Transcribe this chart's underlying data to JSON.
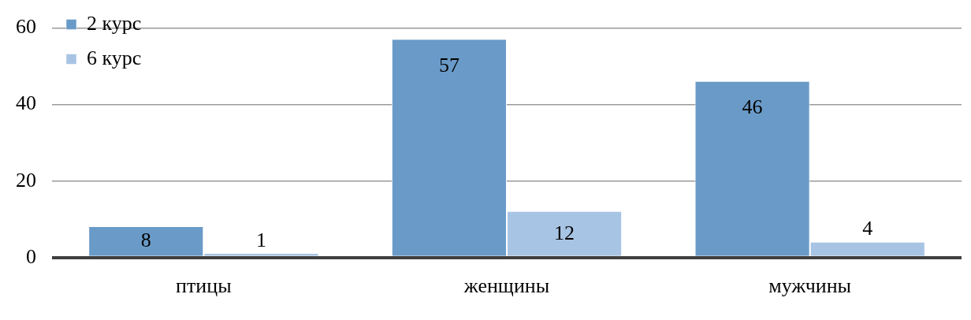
{
  "chart_data": {
    "type": "bar",
    "categories": [
      "птицы",
      "женщины",
      "мужчины"
    ],
    "series": [
      {
        "name": "2 курс",
        "color": "#6a9bc8",
        "values": [
          8,
          57,
          46
        ]
      },
      {
        "name": "6 курс",
        "color": "#a8c4e4",
        "values": [
          1,
          12,
          4
        ]
      }
    ],
    "ylim": [
      0,
      60
    ],
    "yticks": [
      0,
      20,
      40,
      60
    ],
    "grid": "y",
    "legend": "top left",
    "data_labels": true
  }
}
